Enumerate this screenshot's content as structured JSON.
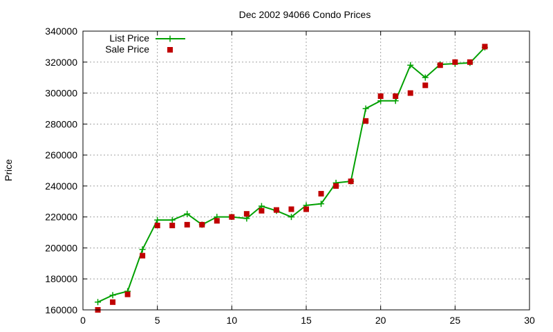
{
  "chart_data": {
    "type": "line",
    "title": "Dec 2002 94066 Condo Prices",
    "xlabel": "",
    "ylabel": "Price",
    "xlim": [
      0,
      30
    ],
    "ylim": [
      160000,
      340000
    ],
    "xticks": [
      0,
      5,
      10,
      15,
      20,
      25,
      30
    ],
    "yticks": [
      160000,
      180000,
      200000,
      220000,
      240000,
      260000,
      280000,
      300000,
      320000,
      340000
    ],
    "grid": true,
    "legend_position": "top-left",
    "series": [
      {
        "name": "List Price",
        "style": "lines+points",
        "marker": "plus",
        "color": "#00a000",
        "x": [
          1,
          2,
          3,
          4,
          5,
          6,
          7,
          8,
          9,
          10,
          11,
          12,
          13,
          14,
          15,
          16,
          17,
          18,
          19,
          20,
          21,
          22,
          23,
          24,
          25,
          26,
          27
        ],
        "y": [
          165000,
          169500,
          172000,
          199000,
          218000,
          218000,
          222000,
          215000,
          220000,
          220000,
          219000,
          227000,
          224000,
          220000,
          227500,
          228500,
          242000,
          243000,
          290000,
          295000,
          295000,
          318000,
          310000,
          318500,
          319000,
          319500,
          329500
        ]
      },
      {
        "name": "Sale Price",
        "style": "points",
        "marker": "square",
        "color": "#c00000",
        "x": [
          1,
          2,
          3,
          4,
          5,
          6,
          7,
          8,
          9,
          10,
          11,
          12,
          13,
          14,
          15,
          16,
          17,
          18,
          19,
          20,
          21,
          22,
          23,
          24,
          25,
          26,
          27
        ],
        "y": [
          160000,
          165000,
          170000,
          195000,
          214500,
          214500,
          215000,
          215000,
          217500,
          220000,
          222000,
          224000,
          224500,
          225000,
          225000,
          235000,
          240000,
          243000,
          282000,
          298000,
          298000,
          300000,
          305000,
          318000,
          320000,
          320000,
          330000
        ]
      }
    ]
  }
}
